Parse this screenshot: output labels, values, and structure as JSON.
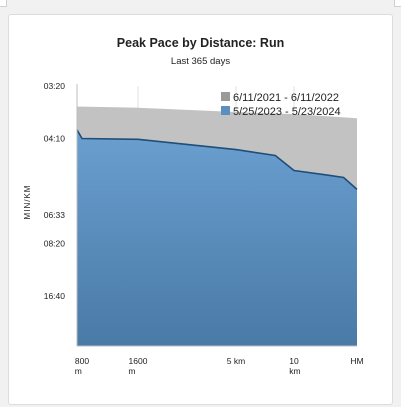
{
  "chart_data": {
    "type": "area",
    "title": "Peak Pace by Distance: Run",
    "subtitle": "Last 365 days",
    "ylabel": "MIN/KM",
    "y_ticks": [
      "03:20",
      "04:10",
      "06:33",
      "08:20",
      "16:40"
    ],
    "x_ticks": [
      {
        "label": "800",
        "sub": "m"
      },
      {
        "label": "1600",
        "sub": "m"
      },
      {
        "label": "5 km",
        "sub": ""
      },
      {
        "label": "10",
        "sub": "km"
      },
      {
        "label": "HM",
        "sub": ""
      }
    ],
    "y_scale": "reciprocal (speed), pace axis inverted",
    "series": [
      {
        "name": "6/11/2021 - 6/11/2022",
        "color": "#c2c2c2",
        "points": [
          {
            "x_km": 0.4,
            "pace": "03:37"
          },
          {
            "x_km": 0.8,
            "pace": "03:37"
          },
          {
            "x_km": 1.6,
            "pace": "03:38"
          },
          {
            "x_km": 5.0,
            "pace": "03:42"
          },
          {
            "x_km": 10.0,
            "pace": "03:44"
          },
          {
            "x_km": 21.1,
            "pace": "03:48"
          }
        ]
      },
      {
        "name": "5/25/2023 - 5/23/2024",
        "color": "#5b8fc0",
        "line_color": "#1f4e79",
        "points": [
          {
            "x_km": 0.4,
            "pace": "04:00"
          },
          {
            "x_km": 0.8,
            "pace": "04:10"
          },
          {
            "x_km": 1.6,
            "pace": "04:11"
          },
          {
            "x_km": 5.0,
            "pace": "04:24"
          },
          {
            "x_km": 8.0,
            "pace": "04:32"
          },
          {
            "x_km": 10.0,
            "pace": "04:55"
          },
          {
            "x_km": 15.0,
            "pace": "05:03"
          },
          {
            "x_km": 18.0,
            "pace": "05:07"
          },
          {
            "x_km": 21.1,
            "pace": "05:30"
          }
        ]
      }
    ],
    "legend_position": "top-right",
    "grid": "vertical lines"
  }
}
